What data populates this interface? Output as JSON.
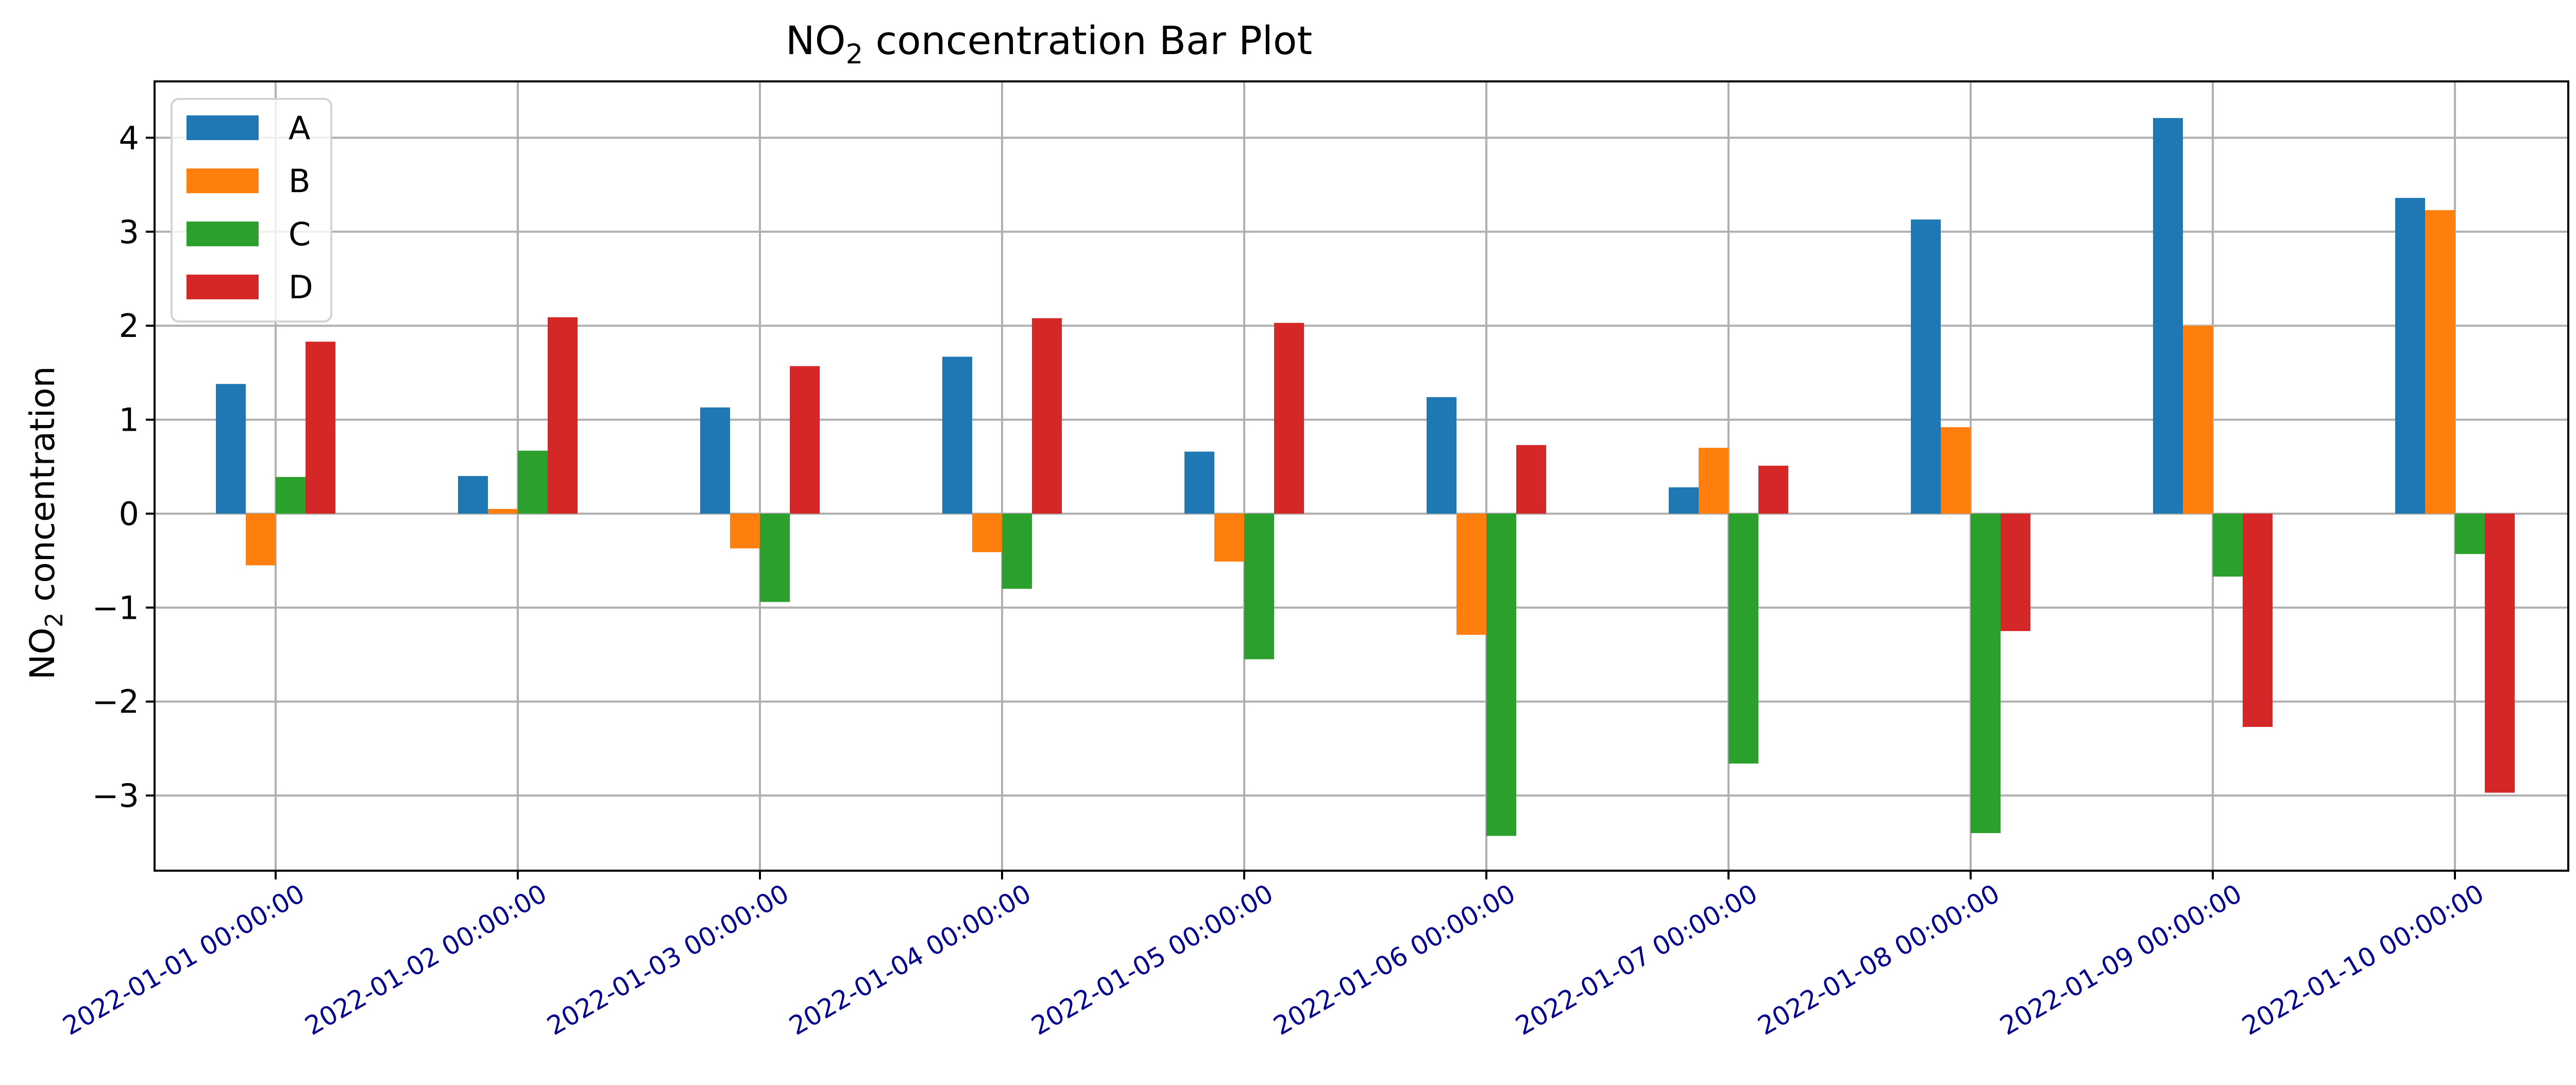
{
  "chart_data": {
    "type": "bar",
    "title_main": "NO",
    "title_sub": "2",
    "title_rest": " concentration Bar Plot",
    "ylabel_main": "NO",
    "ylabel_sub": "2",
    "ylabel_rest": " concentration",
    "xlabel": "",
    "ylim": [
      -3.8,
      4.6
    ],
    "yticks": [
      4,
      3,
      2,
      1,
      0,
      -1,
      -2,
      -3
    ],
    "ytick_labels": [
      "4",
      "3",
      "2",
      "1",
      "0",
      "−1",
      "−2",
      "−3"
    ],
    "grid": true,
    "legend_position": "top-left",
    "categories": [
      "2022-01-01 00:00:00",
      "2022-01-02 00:00:00",
      "2022-01-03 00:00:00",
      "2022-01-04 00:00:00",
      "2022-01-05 00:00:00",
      "2022-01-06 00:00:00",
      "2022-01-07 00:00:00",
      "2022-01-08 00:00:00",
      "2022-01-09 00:00:00",
      "2022-01-10 00:00:00"
    ],
    "series": [
      {
        "name": "A",
        "color": "#1f77b4",
        "values": [
          1.38,
          0.4,
          1.13,
          1.67,
          0.66,
          1.24,
          0.28,
          3.13,
          4.21,
          3.36
        ]
      },
      {
        "name": "B",
        "color": "#ff7f0e",
        "values": [
          -0.55,
          0.05,
          -0.37,
          -0.41,
          -0.51,
          -1.29,
          0.7,
          0.92,
          2.0,
          3.23
        ]
      },
      {
        "name": "C",
        "color": "#2ca02c",
        "values": [
          0.39,
          0.67,
          -0.94,
          -0.8,
          -1.55,
          -3.43,
          -2.66,
          -3.4,
          -0.67,
          -0.43
        ]
      },
      {
        "name": "D",
        "color": "#d62728",
        "values": [
          1.83,
          2.09,
          1.57,
          2.08,
          2.03,
          0.73,
          0.51,
          -1.25,
          -2.27,
          -2.97
        ]
      }
    ]
  },
  "colors": {
    "grid": "#b0b0b0",
    "axis": "#000000",
    "xtick_label": "#00008b",
    "legend_border": "#d4d4d4"
  }
}
